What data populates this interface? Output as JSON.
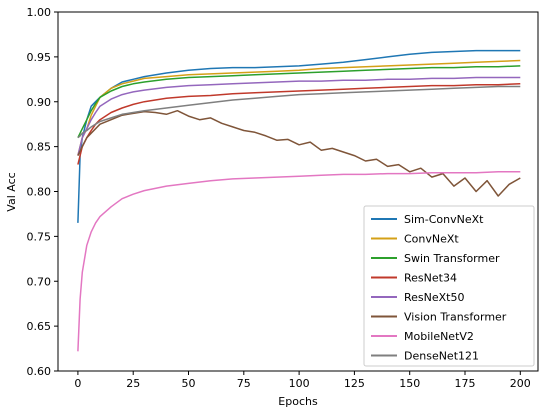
{
  "chart_data": {
    "type": "line",
    "title": "",
    "xlabel": "Epochs",
    "ylabel": "Val Acc",
    "xlim": [
      -9,
      208
    ],
    "ylim": [
      0.6,
      1.0
    ],
    "xticks": [
      0,
      25,
      50,
      75,
      100,
      125,
      150,
      175,
      200
    ],
    "yticks": [
      0.6,
      0.65,
      0.7,
      0.75,
      0.8,
      0.85,
      0.9,
      0.95,
      1.0
    ],
    "xtick_labels": [
      "0",
      "25",
      "50",
      "75",
      "100",
      "125",
      "150",
      "175",
      "200"
    ],
    "ytick_labels": [
      "0.60",
      "0.65",
      "0.70",
      "0.75",
      "0.80",
      "0.85",
      "0.90",
      "0.95",
      "1.00"
    ],
    "grid": false,
    "legend_position": "bottom-right",
    "series": [
      {
        "name": "Sim-ConvNeXt",
        "color": "#1f77b4",
        "x": [
          0,
          1,
          2,
          4,
          6,
          8,
          10,
          15,
          20,
          25,
          30,
          40,
          50,
          60,
          70,
          80,
          90,
          100,
          110,
          120,
          130,
          140,
          150,
          160,
          170,
          180,
          190,
          200
        ],
        "y": [
          0.765,
          0.84,
          0.86,
          0.88,
          0.895,
          0.9,
          0.905,
          0.915,
          0.922,
          0.925,
          0.928,
          0.932,
          0.935,
          0.937,
          0.938,
          0.938,
          0.939,
          0.94,
          0.942,
          0.944,
          0.947,
          0.95,
          0.953,
          0.955,
          0.956,
          0.957,
          0.957,
          0.957
        ]
      },
      {
        "name": "ConvNeXt",
        "color": "#d4a017",
        "x": [
          0,
          1,
          2,
          4,
          6,
          8,
          10,
          15,
          20,
          25,
          30,
          40,
          50,
          60,
          70,
          80,
          90,
          100,
          110,
          120,
          130,
          140,
          150,
          160,
          170,
          180,
          190,
          200
        ],
        "y": [
          0.84,
          0.85,
          0.86,
          0.87,
          0.885,
          0.895,
          0.905,
          0.915,
          0.92,
          0.923,
          0.926,
          0.928,
          0.93,
          0.931,
          0.932,
          0.933,
          0.934,
          0.935,
          0.937,
          0.938,
          0.939,
          0.94,
          0.941,
          0.942,
          0.943,
          0.944,
          0.945,
          0.946
        ]
      },
      {
        "name": "Swin Transformer",
        "color": "#2ca02c",
        "x": [
          0,
          1,
          2,
          4,
          6,
          8,
          10,
          15,
          20,
          25,
          30,
          40,
          50,
          60,
          70,
          80,
          90,
          100,
          110,
          120,
          130,
          140,
          150,
          160,
          170,
          180,
          190,
          200
        ],
        "y": [
          0.86,
          0.865,
          0.87,
          0.88,
          0.89,
          0.898,
          0.905,
          0.912,
          0.917,
          0.92,
          0.922,
          0.925,
          0.927,
          0.928,
          0.929,
          0.93,
          0.931,
          0.932,
          0.933,
          0.934,
          0.935,
          0.936,
          0.937,
          0.938,
          0.938,
          0.939,
          0.939,
          0.94
        ]
      },
      {
        "name": "ResNet34",
        "color": "#c0392b",
        "x": [
          0,
          1,
          2,
          4,
          6,
          8,
          10,
          15,
          20,
          25,
          30,
          40,
          50,
          60,
          70,
          80,
          90,
          100,
          110,
          120,
          130,
          140,
          150,
          160,
          170,
          180,
          190,
          200
        ],
        "y": [
          0.83,
          0.84,
          0.85,
          0.86,
          0.868,
          0.875,
          0.88,
          0.888,
          0.893,
          0.897,
          0.9,
          0.904,
          0.906,
          0.907,
          0.909,
          0.91,
          0.911,
          0.912,
          0.913,
          0.914,
          0.915,
          0.916,
          0.917,
          0.918,
          0.918,
          0.919,
          0.919,
          0.92
        ]
      },
      {
        "name": "ResNeXt50",
        "color": "#9467bd",
        "x": [
          0,
          1,
          2,
          4,
          6,
          8,
          10,
          15,
          20,
          25,
          30,
          40,
          50,
          60,
          70,
          80,
          90,
          100,
          110,
          120,
          130,
          140,
          150,
          160,
          170,
          180,
          190,
          200
        ],
        "y": [
          0.84,
          0.85,
          0.86,
          0.87,
          0.88,
          0.888,
          0.895,
          0.903,
          0.908,
          0.911,
          0.913,
          0.916,
          0.918,
          0.919,
          0.92,
          0.921,
          0.922,
          0.923,
          0.923,
          0.924,
          0.924,
          0.925,
          0.925,
          0.926,
          0.926,
          0.927,
          0.927,
          0.927
        ]
      },
      {
        "name": "Vision Transformer",
        "color": "#7f5539",
        "x": [
          0,
          1,
          2,
          4,
          6,
          8,
          10,
          15,
          20,
          25,
          30,
          35,
          40,
          45,
          50,
          55,
          60,
          65,
          70,
          75,
          80,
          85,
          90,
          95,
          100,
          105,
          110,
          115,
          120,
          125,
          130,
          135,
          140,
          145,
          150,
          155,
          160,
          165,
          170,
          175,
          180,
          185,
          190,
          195,
          200
        ],
        "y": [
          0.84,
          0.845,
          0.85,
          0.86,
          0.865,
          0.87,
          0.875,
          0.88,
          0.885,
          0.887,
          0.889,
          0.888,
          0.886,
          0.89,
          0.884,
          0.88,
          0.882,
          0.876,
          0.872,
          0.868,
          0.866,
          0.862,
          0.857,
          0.858,
          0.852,
          0.855,
          0.846,
          0.848,
          0.844,
          0.84,
          0.834,
          0.836,
          0.828,
          0.83,
          0.822,
          0.826,
          0.816,
          0.82,
          0.806,
          0.815,
          0.8,
          0.812,
          0.795,
          0.808,
          0.815
        ]
      },
      {
        "name": "MobileNetV2",
        "color": "#e377c2",
        "x": [
          0,
          1,
          2,
          4,
          6,
          8,
          10,
          15,
          20,
          25,
          30,
          40,
          50,
          60,
          70,
          80,
          90,
          100,
          110,
          120,
          130,
          140,
          150,
          160,
          170,
          180,
          190,
          200
        ],
        "y": [
          0.622,
          0.68,
          0.71,
          0.74,
          0.755,
          0.765,
          0.772,
          0.783,
          0.792,
          0.797,
          0.801,
          0.806,
          0.809,
          0.812,
          0.814,
          0.815,
          0.816,
          0.817,
          0.818,
          0.819,
          0.819,
          0.82,
          0.82,
          0.821,
          0.821,
          0.821,
          0.822,
          0.822
        ]
      },
      {
        "name": "DenseNet121",
        "color": "#7f7f7f",
        "x": [
          0,
          1,
          2,
          4,
          6,
          8,
          10,
          15,
          20,
          25,
          30,
          40,
          50,
          60,
          70,
          80,
          90,
          100,
          110,
          120,
          130,
          140,
          150,
          160,
          170,
          180,
          190,
          200
        ],
        "y": [
          0.86,
          0.862,
          0.865,
          0.868,
          0.872,
          0.875,
          0.878,
          0.882,
          0.886,
          0.888,
          0.89,
          0.893,
          0.896,
          0.899,
          0.902,
          0.904,
          0.906,
          0.908,
          0.909,
          0.91,
          0.911,
          0.912,
          0.913,
          0.914,
          0.915,
          0.916,
          0.917,
          0.917
        ]
      }
    ]
  }
}
